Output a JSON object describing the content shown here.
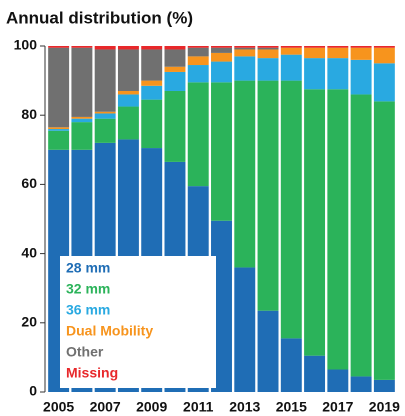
{
  "chart_data": {
    "type": "stacked_bar",
    "title": "Annual distribution (%)",
    "categories": [
      "2005",
      null,
      "2007",
      null,
      "2009",
      null,
      "2011",
      null,
      "2013",
      null,
      "2015",
      null,
      "2017",
      null,
      "2019"
    ],
    "series": [
      {
        "name": "28 mm",
        "color": "#1f6db5",
        "values": [
          70,
          70,
          72,
          73,
          70.5,
          66.5,
          59.5,
          49.5,
          36,
          23.5,
          15.5,
          10.5,
          6.5,
          4.5,
          3.5
        ]
      },
      {
        "name": "32 mm",
        "color": "#2bb35a",
        "values": [
          5.5,
          8,
          7,
          9.5,
          14,
          20.5,
          30,
          40,
          54,
          66.5,
          74.5,
          77,
          81,
          81.5,
          80.5
        ]
      },
      {
        "name": "36 mm",
        "color": "#29a9e1",
        "values": [
          0.5,
          1,
          1.5,
          3.5,
          4,
          5.5,
          5,
          6,
          7,
          6.5,
          7.5,
          9,
          9,
          10,
          11
        ]
      },
      {
        "name": "Dual Mobility",
        "color": "#f7941d",
        "values": [
          0.5,
          0.5,
          0.5,
          1,
          1.5,
          1.5,
          2.5,
          2.5,
          2,
          2.5,
          2,
          3,
          3,
          3.5,
          4.5
        ]
      },
      {
        "name": "Other",
        "color": "#707070",
        "values": [
          23,
          20,
          18,
          12,
          9,
          5,
          2.5,
          1.5,
          0.5,
          0.5,
          0,
          0,
          0,
          0,
          0
        ]
      },
      {
        "name": "Missing",
        "color": "#e8282b",
        "values": [
          0.5,
          0.5,
          1,
          1,
          1,
          1,
          0.5,
          0.5,
          0.5,
          0.5,
          0.5,
          0.5,
          0.5,
          0.5,
          0.5
        ]
      }
    ],
    "ylim": [
      0,
      100
    ],
    "yticks": [
      0,
      20,
      40,
      60,
      80,
      100
    ]
  }
}
